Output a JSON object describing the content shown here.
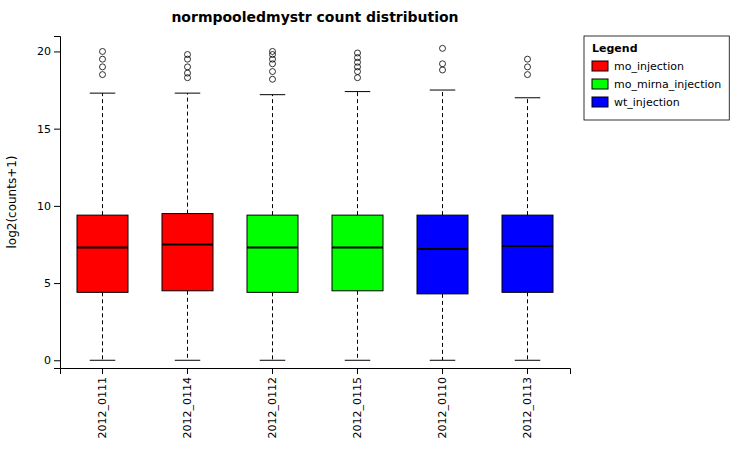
{
  "chart_data": {
    "type": "box",
    "title": "normpooledmystr count distribution",
    "y_label": "log2(counts+1)",
    "categories": [
      "2012_0111",
      "2012_0114",
      "2012_0112",
      "2012_0115",
      "2012_0110",
      "2012_0113"
    ],
    "colors": [
      "red",
      "red",
      "lime",
      "lime",
      "blue",
      "blue"
    ],
    "boxes": [
      {
        "med": 7.3,
        "q1": 4.4,
        "q3": 9.4,
        "whislo": 0.0,
        "whishi": 17.3,
        "fliers": [
          18.5,
          19.0,
          19.5,
          20.0
        ]
      },
      {
        "med": 7.5,
        "q1": 4.5,
        "q3": 9.5,
        "whislo": 0.0,
        "whishi": 17.3,
        "fliers": [
          18.3,
          18.6,
          19.0,
          19.5,
          19.8
        ]
      },
      {
        "med": 7.3,
        "q1": 4.4,
        "q3": 9.4,
        "whislo": 0.0,
        "whishi": 17.2,
        "fliers": [
          18.2,
          18.7,
          19.2,
          19.5,
          19.8,
          20.0
        ]
      },
      {
        "med": 7.3,
        "q1": 4.5,
        "q3": 9.4,
        "whislo": 0.0,
        "whishi": 17.4,
        "fliers": [
          18.3,
          18.7,
          19.0,
          19.3,
          19.6,
          19.9
        ]
      },
      {
        "med": 7.2,
        "q1": 4.3,
        "q3": 9.4,
        "whislo": 0.0,
        "whishi": 17.5,
        "fliers": [
          18.8,
          19.2,
          20.2
        ]
      },
      {
        "med": 7.4,
        "q1": 4.4,
        "q3": 9.4,
        "whislo": 0.0,
        "whishi": 17.0,
        "fliers": [
          18.5,
          19.0,
          19.5
        ]
      }
    ],
    "legend_title": "Legend",
    "legend_entries": [
      {
        "name": "mo_injection",
        "color": "red"
      },
      {
        "name": "mo_mirna_injection",
        "color": "lime"
      },
      {
        "name": "wt_injection",
        "color": "blue"
      }
    ],
    "legend": "right",
    "ylim": [
      -0.5,
      21
    ],
    "yticks": [
      0,
      5,
      10,
      15,
      20
    ],
    "grid": false
  }
}
